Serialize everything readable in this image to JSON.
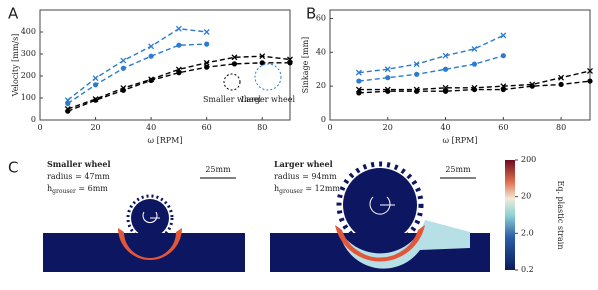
{
  "chart_data": [
    {
      "type": "line",
      "panel": "A",
      "xlabel": "ω [RPM]",
      "ylabel": "Velocity [mm/s]",
      "xlim": [
        0,
        90
      ],
      "xticks": [
        0,
        20,
        40,
        60,
        80
      ],
      "ylim": [
        0,
        500
      ],
      "yticks": [
        0,
        100,
        200,
        300,
        400
      ],
      "series": [
        {
          "name": "Smaller wheel",
          "color": "#000000",
          "x": [
            10,
            20,
            30,
            40,
            50,
            60,
            70,
            80,
            90
          ],
          "experiment": [
            50,
            95,
            145,
            185,
            230,
            260,
            285,
            290,
            275
          ],
          "simulation": [
            40,
            90,
            135,
            180,
            215,
            240,
            255,
            260,
            260
          ]
        },
        {
          "name": "Larger wheel",
          "color": "#2b7bd1",
          "x": [
            10,
            20,
            30,
            40,
            50,
            60
          ],
          "experiment": [
            90,
            190,
            270,
            335,
            415,
            400
          ],
          "simulation": [
            75,
            160,
            235,
            290,
            340,
            345
          ]
        }
      ]
    },
    {
      "type": "line",
      "panel": "B",
      "xlabel": "ω [RPM]",
      "ylabel": "Sinkage [mm]",
      "xlim": [
        0,
        90
      ],
      "xticks": [
        0,
        20,
        40,
        60,
        80
      ],
      "ylim": [
        0,
        65
      ],
      "yticks": [
        0,
        20,
        40,
        60
      ],
      "series": [
        {
          "color": "#000000",
          "x": [
            10,
            20,
            30,
            40,
            50,
            60,
            70,
            80,
            90
          ],
          "experiment": [
            18,
            18,
            18,
            19,
            19,
            20,
            21,
            25,
            29
          ],
          "simulation": [
            16,
            17,
            17,
            17,
            18,
            18,
            20,
            21,
            23
          ]
        },
        {
          "color": "#2b7bd1",
          "x": [
            10,
            20,
            30,
            40,
            50,
            60
          ],
          "experiment": [
            28,
            30,
            33,
            38,
            42,
            50
          ],
          "simulation": [
            23,
            25,
            27,
            30,
            33,
            38
          ]
        }
      ]
    }
  ],
  "panel_c": {
    "label": "C",
    "small": {
      "title": "Smaller wheel",
      "radius": "radius =  47mm",
      "h": "h",
      "sub": "grouser",
      "h_value": " = 6mm",
      "scale": "25mm"
    },
    "large": {
      "title": "Larger wheel",
      "radius": "radius = 94mm",
      "h": "h",
      "sub": "grouser",
      "h_value": " = 12mm",
      "scale": "25mm"
    },
    "colorbar": {
      "label": "Eq. plastic strain",
      "log": true,
      "lim": [
        0.2,
        200
      ],
      "ticks": [
        200,
        20,
        {
          "value": 2,
          "label": "2.0"
        },
        0.2
      ]
    }
  }
}
